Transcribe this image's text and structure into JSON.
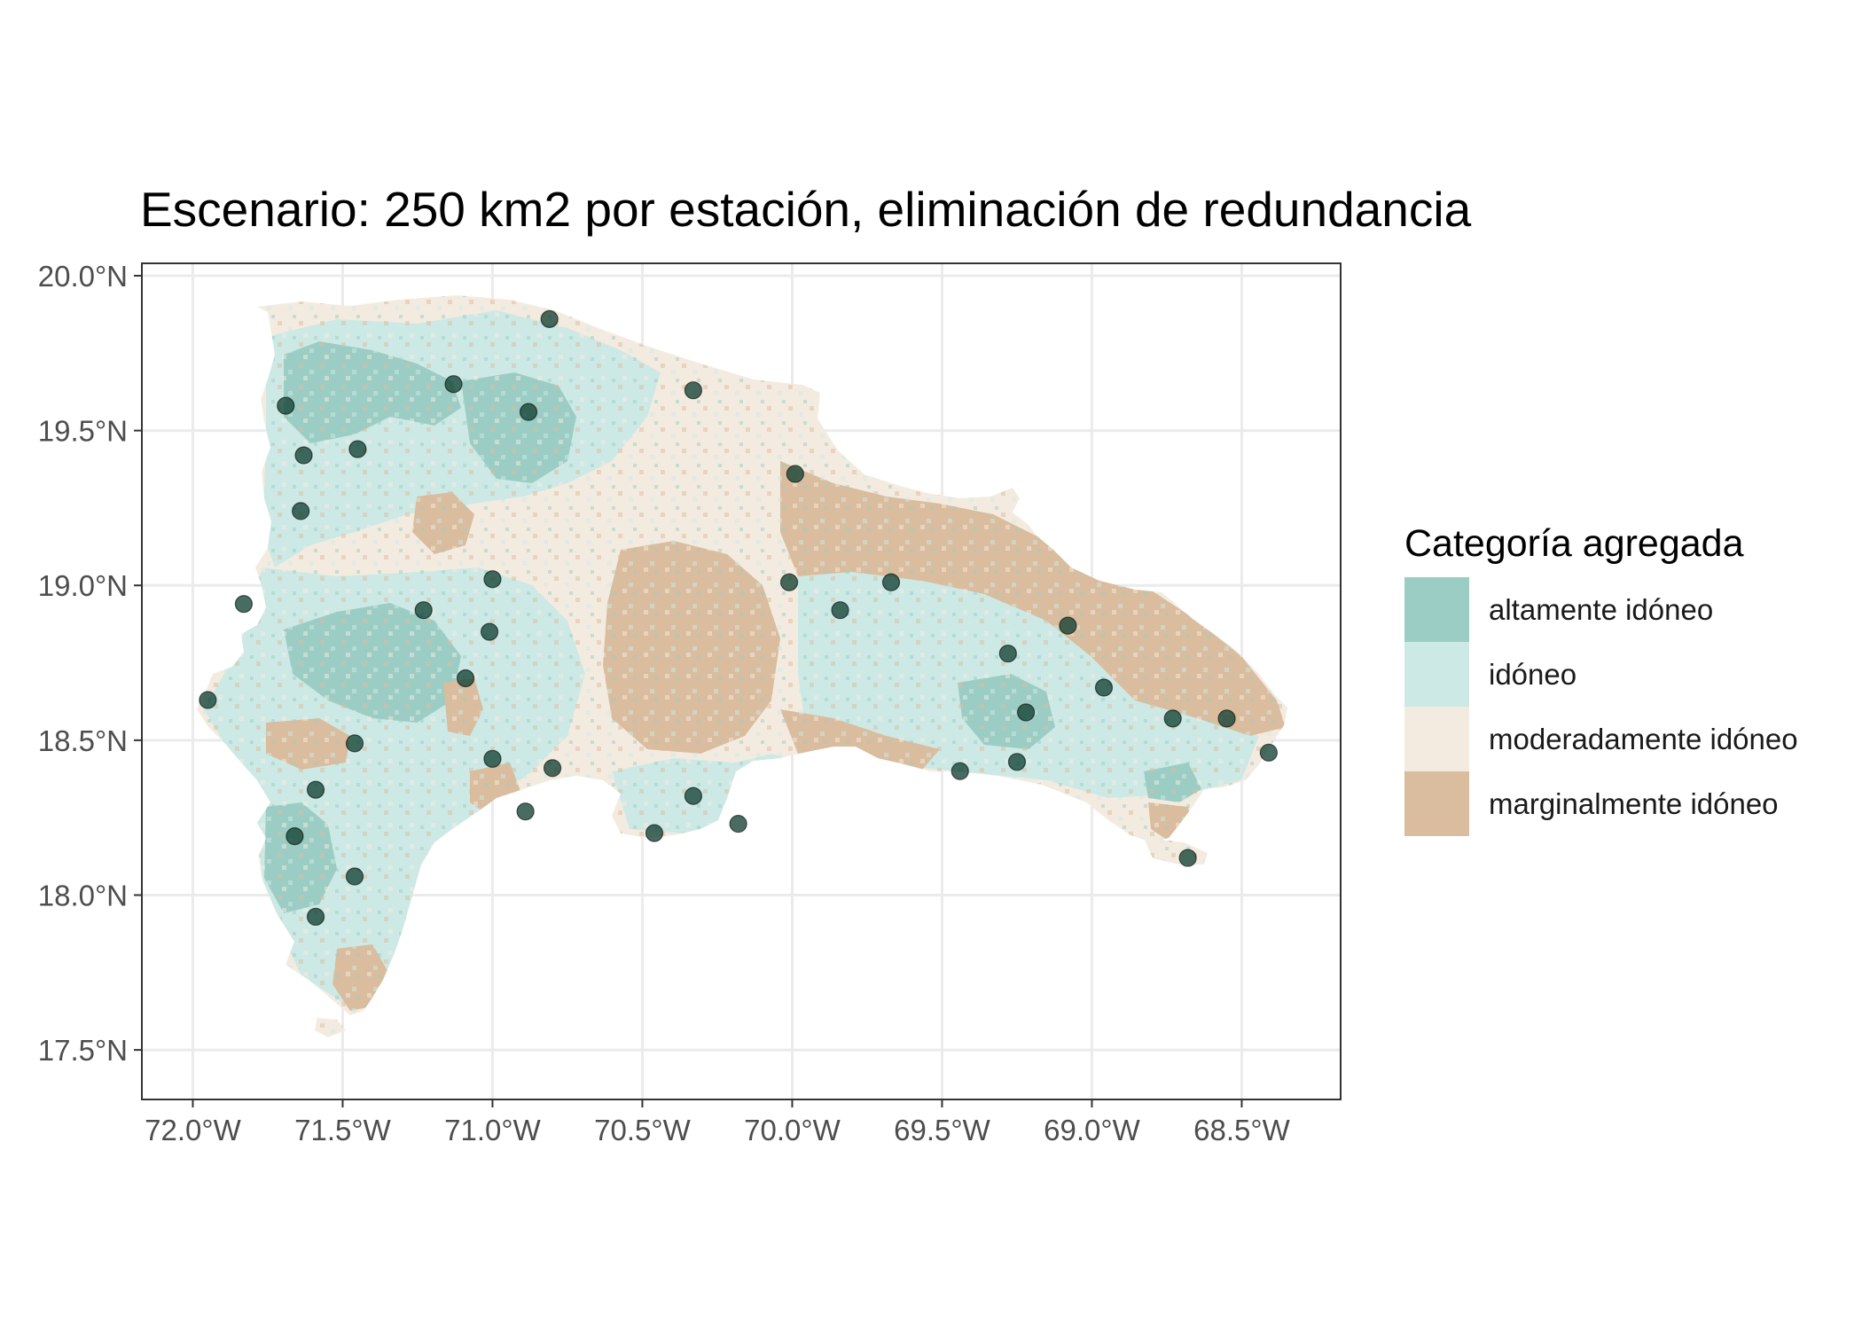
{
  "title": "Escenario: 250 km2 por estación, eliminación de redundancia",
  "legend": {
    "title": "Categoría agregada",
    "items": [
      {
        "label": "altamente idóneo",
        "color": "#9ccdc4"
      },
      {
        "label": "idóneo",
        "color": "#cde9e5"
      },
      {
        "label": "moderadamente idóneo",
        "color": "#f4ebe0"
      },
      {
        "label": "marginalmente idóneo",
        "color": "#d9bd9e"
      }
    ]
  },
  "axes": {
    "x": {
      "range": [
        -72.17,
        -68.17
      ],
      "ticks": [
        {
          "value": -72.0,
          "label": "72.0°W"
        },
        {
          "value": -71.5,
          "label": "71.5°W"
        },
        {
          "value": -71.0,
          "label": "71.0°W"
        },
        {
          "value": -70.5,
          "label": "70.5°W"
        },
        {
          "value": -70.0,
          "label": "70.0°W"
        },
        {
          "value": -69.5,
          "label": "69.5°W"
        },
        {
          "value": -69.0,
          "label": "69.0°W"
        },
        {
          "value": -68.5,
          "label": "68.5°W"
        }
      ]
    },
    "y": {
      "range": [
        17.34,
        20.04
      ],
      "ticks": [
        {
          "value": 20.0,
          "label": "20.0°N"
        },
        {
          "value": 19.5,
          "label": "19.5°N"
        },
        {
          "value": 19.0,
          "label": "19.0°N"
        },
        {
          "value": 18.5,
          "label": "18.5°N"
        },
        {
          "value": 18.0,
          "label": "18.0°N"
        },
        {
          "value": 17.5,
          "label": "17.5°N"
        }
      ]
    },
    "grid": true
  },
  "chart_data": {
    "type": "scatter",
    "title": "Escenario: 250 km2 por estación, eliminación de redundancia",
    "xlim": [
      -72.17,
      -68.17
    ],
    "ylim": [
      17.34,
      20.04
    ],
    "grid": true,
    "legend_position": "right",
    "stations": [
      {
        "lon": -70.81,
        "lat": 19.86
      },
      {
        "lon": -71.13,
        "lat": 19.65
      },
      {
        "lon": -70.33,
        "lat": 19.63
      },
      {
        "lon": -71.69,
        "lat": 19.58
      },
      {
        "lon": -70.88,
        "lat": 19.56
      },
      {
        "lon": -71.45,
        "lat": 19.44
      },
      {
        "lon": -71.63,
        "lat": 19.42
      },
      {
        "lon": -69.99,
        "lat": 19.36
      },
      {
        "lon": -71.64,
        "lat": 19.24
      },
      {
        "lon": -71.0,
        "lat": 19.02
      },
      {
        "lon": -70.01,
        "lat": 19.01
      },
      {
        "lon": -69.67,
        "lat": 19.01
      },
      {
        "lon": -71.83,
        "lat": 18.94
      },
      {
        "lon": -71.23,
        "lat": 18.92
      },
      {
        "lon": -69.84,
        "lat": 18.92
      },
      {
        "lon": -69.08,
        "lat": 18.87
      },
      {
        "lon": -71.01,
        "lat": 18.85
      },
      {
        "lon": -69.28,
        "lat": 18.78
      },
      {
        "lon": -71.09,
        "lat": 18.7
      },
      {
        "lon": -68.96,
        "lat": 18.67
      },
      {
        "lon": -71.95,
        "lat": 18.63
      },
      {
        "lon": -69.22,
        "lat": 18.59
      },
      {
        "lon": -68.73,
        "lat": 18.57
      },
      {
        "lon": -68.55,
        "lat": 18.57
      },
      {
        "lon": -71.46,
        "lat": 18.49
      },
      {
        "lon": -68.41,
        "lat": 18.46
      },
      {
        "lon": -71.0,
        "lat": 18.44
      },
      {
        "lon": -69.25,
        "lat": 18.43
      },
      {
        "lon": -70.8,
        "lat": 18.41
      },
      {
        "lon": -69.44,
        "lat": 18.4
      },
      {
        "lon": -71.59,
        "lat": 18.34
      },
      {
        "lon": -70.33,
        "lat": 18.32
      },
      {
        "lon": -70.89,
        "lat": 18.27
      },
      {
        "lon": -70.18,
        "lat": 18.23
      },
      {
        "lon": -71.66,
        "lat": 18.19
      },
      {
        "lon": -70.46,
        "lat": 18.2
      },
      {
        "lon": -68.68,
        "lat": 18.12
      },
      {
        "lon": -71.46,
        "lat": 18.06
      },
      {
        "lon": -71.59,
        "lat": 17.93
      }
    ]
  }
}
